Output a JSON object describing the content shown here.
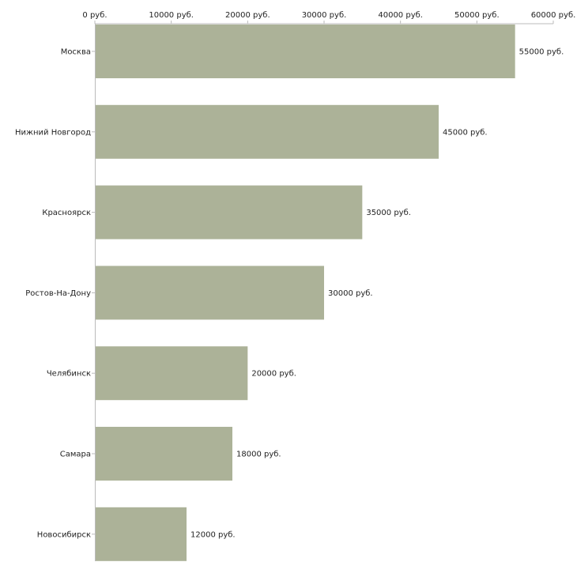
{
  "chart_data": {
    "type": "bar",
    "orientation": "horizontal",
    "title": "",
    "xlabel": "",
    "ylabel": "",
    "unit": "руб.",
    "categories": [
      "Москва",
      "Нижний Новгород",
      "Красноярск",
      "Ростов-На-Дону",
      "Челябинск",
      "Самара",
      "Новосибирск"
    ],
    "values": [
      55000,
      45000,
      35000,
      30000,
      20000,
      18000,
      12000
    ],
    "value_labels": [
      "55000 руб.",
      "45000 руб.",
      "35000 руб.",
      "30000 руб.",
      "20000 руб.",
      "18000 руб.",
      "12000 руб."
    ],
    "xlim": [
      0,
      60000
    ],
    "ticks": [
      0,
      10000,
      20000,
      30000,
      40000,
      50000,
      60000
    ],
    "tick_labels": [
      "0 руб.",
      "10000 руб.",
      "20000 руб.",
      "30000 руб.",
      "40000 руб.",
      "50000 руб.",
      "60000 руб."
    ],
    "axis_position": "top",
    "grid": false,
    "legend": "none",
    "bar_color": "#acb298",
    "axis_color": "#bbbbbb",
    "text_color": "#222222"
  }
}
